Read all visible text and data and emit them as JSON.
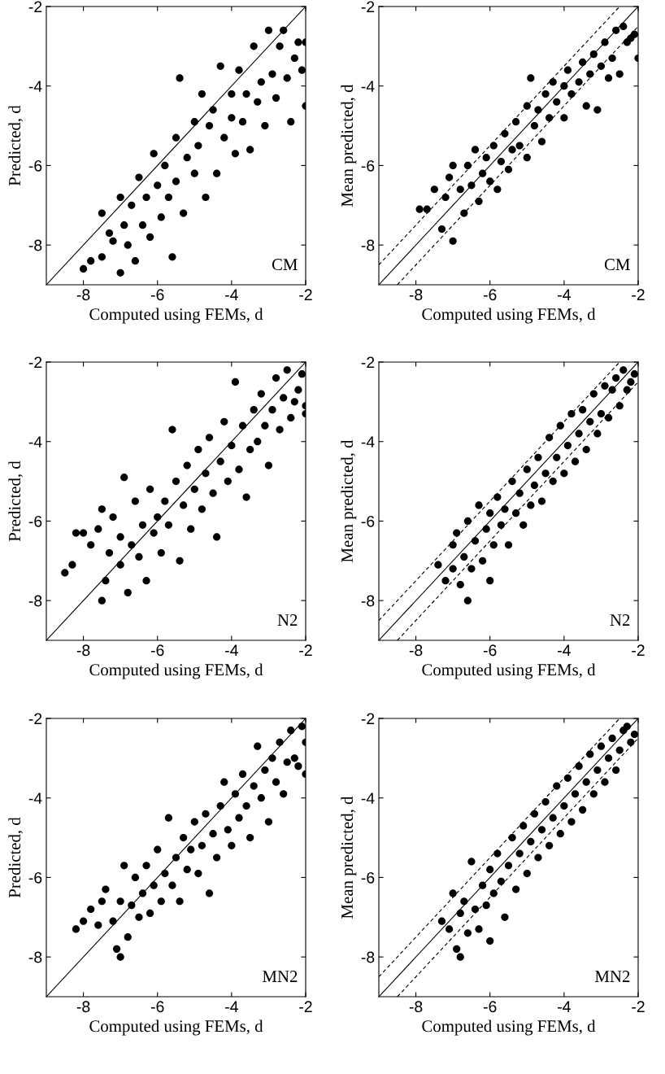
{
  "chart_data": [
    {
      "type": "scatter",
      "xlabel": "Computed using FEMs, d",
      "ylabel": "Predicted, d",
      "annotations": [
        "CM"
      ],
      "xlim": [
        -9,
        -2
      ],
      "ylim": [
        -9,
        -2
      ],
      "xticks": [
        -8,
        -6,
        -4,
        -2
      ],
      "yticks": [
        -8,
        -6,
        -4,
        -2
      ],
      "series": [
        {
          "marker": "circle",
          "color": "#000000",
          "x": [
            -8.0,
            -7.8,
            -7.5,
            -7.5,
            -7.3,
            -7.2,
            -7.0,
            -7.0,
            -6.9,
            -6.8,
            -6.7,
            -6.6,
            -6.5,
            -6.4,
            -6.3,
            -6.2,
            -6.1,
            -6.0,
            -5.9,
            -5.8,
            -5.7,
            -5.6,
            -5.5,
            -5.5,
            -5.4,
            -5.3,
            -5.2,
            -5.0,
            -5.0,
            -4.9,
            -4.8,
            -4.7,
            -4.6,
            -4.5,
            -4.4,
            -4.3,
            -4.2,
            -4.0,
            -4.0,
            -3.9,
            -3.8,
            -3.7,
            -3.6,
            -3.5,
            -3.4,
            -3.3,
            -3.2,
            -3.1,
            -3.0,
            -2.9,
            -2.8,
            -2.7,
            -2.6,
            -2.5,
            -2.4,
            -2.3,
            -2.2,
            -2.1,
            -2.0,
            -2.0
          ],
          "values": [
            -8.6,
            -8.4,
            -7.2,
            -8.3,
            -7.7,
            -7.9,
            -8.7,
            -6.8,
            -7.5,
            -8.0,
            -7.0,
            -8.4,
            -6.3,
            -7.5,
            -6.8,
            -7.8,
            -5.7,
            -6.5,
            -7.3,
            -6.0,
            -6.8,
            -8.3,
            -5.3,
            -6.4,
            -3.8,
            -7.2,
            -5.8,
            -6.2,
            -4.9,
            -5.5,
            -4.2,
            -6.8,
            -5.0,
            -4.6,
            -6.2,
            -3.5,
            -5.3,
            -4.8,
            -4.2,
            -5.7,
            -3.6,
            -4.9,
            -4.2,
            -5.6,
            -3.0,
            -4.4,
            -3.9,
            -5.0,
            -2.6,
            -3.7,
            -4.3,
            -3.0,
            -2.6,
            -3.8,
            -4.9,
            -3.3,
            -2.9,
            -3.6,
            -2.9,
            -4.5
          ]
        },
        {
          "type": "line",
          "marker": "none",
          "color": "#000000",
          "line_style": "solid",
          "x": [
            -9,
            -2
          ],
          "values": [
            -9,
            -2
          ]
        }
      ]
    },
    {
      "type": "scatter",
      "xlabel": "Computed using FEMs, d",
      "ylabel": "Mean predicted, d",
      "annotations": [
        "CM"
      ],
      "xlim": [
        -9,
        -2
      ],
      "ylim": [
        -9,
        -2
      ],
      "xticks": [
        -8,
        -6,
        -4,
        -2
      ],
      "yticks": [
        -8,
        -6,
        -4,
        -2
      ],
      "series": [
        {
          "marker": "circle",
          "color": "#000000",
          "x": [
            -7.9,
            -7.7,
            -7.5,
            -7.3,
            -7.2,
            -7.1,
            -7.0,
            -7.0,
            -6.8,
            -6.7,
            -6.6,
            -6.5,
            -6.4,
            -6.3,
            -6.2,
            -6.1,
            -6.0,
            -5.9,
            -5.8,
            -5.7,
            -5.6,
            -5.5,
            -5.4,
            -5.3,
            -5.2,
            -5.0,
            -5.0,
            -4.9,
            -4.8,
            -4.7,
            -4.6,
            -4.5,
            -4.4,
            -4.3,
            -4.2,
            -4.0,
            -4.0,
            -3.9,
            -3.8,
            -3.6,
            -3.5,
            -3.4,
            -3.3,
            -3.2,
            -3.1,
            -3.0,
            -2.9,
            -2.8,
            -2.7,
            -2.6,
            -2.5,
            -2.4,
            -2.3,
            -2.2,
            -2.1,
            -2.0
          ],
          "values": [
            -7.1,
            -7.1,
            -6.6,
            -7.6,
            -6.8,
            -6.3,
            -7.9,
            -6.0,
            -6.6,
            -7.2,
            -6.0,
            -6.5,
            -5.6,
            -6.9,
            -6.2,
            -5.8,
            -6.4,
            -5.5,
            -6.6,
            -5.9,
            -5.2,
            -6.1,
            -5.6,
            -4.9,
            -5.5,
            -4.5,
            -5.8,
            -3.8,
            -5.0,
            -4.6,
            -5.4,
            -4.2,
            -4.8,
            -3.9,
            -4.4,
            -4.0,
            -4.8,
            -3.6,
            -4.2,
            -3.9,
            -3.4,
            -4.5,
            -3.7,
            -3.2,
            -4.6,
            -3.5,
            -2.9,
            -3.8,
            -3.3,
            -2.6,
            -3.7,
            -2.5,
            -2.9,
            -2.8,
            -2.7,
            -3.3
          ]
        },
        {
          "type": "line",
          "marker": "none",
          "color": "#000000",
          "line_style": "solid",
          "x": [
            -9,
            -2
          ],
          "values": [
            -9,
            -2
          ]
        },
        {
          "type": "line",
          "marker": "none",
          "color": "#000000",
          "line_style": "dashed",
          "x": [
            -9,
            -2.5
          ],
          "values": [
            -8.5,
            -2
          ]
        },
        {
          "type": "line",
          "marker": "none",
          "color": "#000000",
          "line_style": "dashed",
          "x": [
            -8.5,
            -2
          ],
          "values": [
            -9,
            -2.5
          ]
        }
      ]
    },
    {
      "type": "scatter",
      "xlabel": "Computed using FEMs, d",
      "ylabel": "Predicted, d",
      "annotations": [
        "N2"
      ],
      "xlim": [
        -9,
        -2
      ],
      "ylim": [
        -9,
        -2
      ],
      "xticks": [
        -8,
        -6,
        -4,
        -2
      ],
      "yticks": [
        -8,
        -6,
        -4,
        -2
      ],
      "series": [
        {
          "marker": "circle",
          "color": "#000000",
          "x": [
            -8.5,
            -8.3,
            -8.2,
            -8.0,
            -7.8,
            -7.6,
            -7.5,
            -7.5,
            -7.4,
            -7.3,
            -7.2,
            -7.0,
            -7.0,
            -6.9,
            -6.8,
            -6.7,
            -6.6,
            -6.5,
            -6.4,
            -6.3,
            -6.2,
            -6.1,
            -6.0,
            -5.9,
            -5.8,
            -5.7,
            -5.6,
            -5.5,
            -5.4,
            -5.3,
            -5.2,
            -5.1,
            -5.0,
            -4.9,
            -4.8,
            -4.7,
            -4.6,
            -4.5,
            -4.4,
            -4.3,
            -4.2,
            -4.1,
            -4.0,
            -3.9,
            -3.8,
            -3.7,
            -3.6,
            -3.5,
            -3.4,
            -3.3,
            -3.2,
            -3.1,
            -3.0,
            -2.9,
            -2.8,
            -2.7,
            -2.6,
            -2.5,
            -2.4,
            -2.3,
            -2.2,
            -2.1,
            -2.0,
            -2.0
          ],
          "values": [
            -7.3,
            -7.1,
            -6.3,
            -6.3,
            -6.6,
            -6.2,
            -8.0,
            -5.7,
            -7.5,
            -6.8,
            -5.9,
            -7.1,
            -6.4,
            -4.9,
            -7.8,
            -6.6,
            -5.5,
            -6.9,
            -6.1,
            -7.5,
            -5.2,
            -6.3,
            -5.9,
            -6.8,
            -5.5,
            -6.1,
            -3.7,
            -5.0,
            -7.0,
            -5.6,
            -4.6,
            -6.2,
            -5.2,
            -4.2,
            -5.7,
            -4.8,
            -3.9,
            -5.3,
            -6.4,
            -4.5,
            -3.5,
            -5.0,
            -4.1,
            -2.5,
            -4.7,
            -3.6,
            -5.4,
            -4.2,
            -3.2,
            -4.0,
            -2.8,
            -3.6,
            -4.6,
            -3.2,
            -2.4,
            -3.7,
            -2.9,
            -2.2,
            -3.4,
            -3.0,
            -2.7,
            -2.3,
            -3.1,
            -3.3
          ]
        },
        {
          "type": "line",
          "marker": "none",
          "color": "#000000",
          "line_style": "solid",
          "x": [
            -9,
            -2
          ],
          "values": [
            -9,
            -2
          ]
        }
      ]
    },
    {
      "type": "scatter",
      "xlabel": "Computed using FEMs, d",
      "ylabel": "Mean predicted, d",
      "annotations": [
        "N2"
      ],
      "xlim": [
        -9,
        -2
      ],
      "ylim": [
        -9,
        -2
      ],
      "xticks": [
        -8,
        -6,
        -4,
        -2
      ],
      "yticks": [
        -8,
        -6,
        -4,
        -2
      ],
      "series": [
        {
          "marker": "circle",
          "color": "#000000",
          "x": [
            -7.4,
            -7.2,
            -7.0,
            -7.0,
            -6.9,
            -6.8,
            -6.7,
            -6.6,
            -6.6,
            -6.5,
            -6.4,
            -6.3,
            -6.2,
            -6.1,
            -6.0,
            -6.0,
            -5.9,
            -5.8,
            -5.7,
            -5.6,
            -5.5,
            -5.4,
            -5.3,
            -5.2,
            -5.1,
            -5.0,
            -4.9,
            -4.8,
            -4.7,
            -4.6,
            -4.5,
            -4.4,
            -4.3,
            -4.2,
            -4.1,
            -4.0,
            -3.9,
            -3.8,
            -3.7,
            -3.6,
            -3.5,
            -3.4,
            -3.3,
            -3.2,
            -3.1,
            -3.0,
            -2.9,
            -2.8,
            -2.7,
            -2.6,
            -2.5,
            -2.4,
            -2.3,
            -2.2,
            -2.1
          ],
          "values": [
            -7.1,
            -7.5,
            -6.6,
            -7.2,
            -6.3,
            -7.6,
            -6.9,
            -6.0,
            -8.0,
            -7.2,
            -6.5,
            -5.6,
            -7.0,
            -6.2,
            -5.8,
            -7.5,
            -6.6,
            -5.4,
            -6.1,
            -5.7,
            -6.6,
            -5.0,
            -5.8,
            -5.3,
            -6.1,
            -4.7,
            -5.6,
            -5.1,
            -4.4,
            -5.5,
            -4.8,
            -3.9,
            -5.0,
            -4.4,
            -3.6,
            -4.8,
            -4.1,
            -3.3,
            -4.5,
            -3.8,
            -3.2,
            -4.2,
            -3.5,
            -2.8,
            -3.8,
            -3.3,
            -2.6,
            -3.4,
            -2.7,
            -2.4,
            -3.1,
            -2.2,
            -2.7,
            -2.5,
            -2.3
          ]
        },
        {
          "type": "line",
          "marker": "none",
          "color": "#000000",
          "line_style": "solid",
          "x": [
            -9,
            -2
          ],
          "values": [
            -9,
            -2
          ]
        },
        {
          "type": "line",
          "marker": "none",
          "color": "#000000",
          "line_style": "dashed",
          "x": [
            -9,
            -2.5
          ],
          "values": [
            -8.5,
            -2
          ]
        },
        {
          "type": "line",
          "marker": "none",
          "color": "#000000",
          "line_style": "dashed",
          "x": [
            -8.5,
            -2
          ],
          "values": [
            -9,
            -2.5
          ]
        }
      ]
    },
    {
      "type": "scatter",
      "xlabel": "Computed using FEMs, d",
      "ylabel": "Predicted, d",
      "annotations": [
        "MN2"
      ],
      "xlim": [
        -9,
        -2
      ],
      "ylim": [
        -9,
        -2
      ],
      "xticks": [
        -8,
        -6,
        -4,
        -2
      ],
      "yticks": [
        -8,
        -6,
        -4,
        -2
      ],
      "series": [
        {
          "marker": "circle",
          "color": "#000000",
          "x": [
            -8.2,
            -8.0,
            -7.8,
            -7.6,
            -7.5,
            -7.4,
            -7.2,
            -7.1,
            -7.0,
            -7.0,
            -6.9,
            -6.8,
            -6.7,
            -6.6,
            -6.5,
            -6.4,
            -6.3,
            -6.2,
            -6.1,
            -6.0,
            -5.9,
            -5.8,
            -5.7,
            -5.6,
            -5.5,
            -5.4,
            -5.3,
            -5.2,
            -5.1,
            -5.0,
            -4.9,
            -4.8,
            -4.7,
            -4.6,
            -4.5,
            -4.4,
            -4.3,
            -4.2,
            -4.1,
            -4.0,
            -3.9,
            -3.8,
            -3.7,
            -3.6,
            -3.5,
            -3.4,
            -3.3,
            -3.2,
            -3.1,
            -3.0,
            -2.9,
            -2.8,
            -2.7,
            -2.6,
            -2.5,
            -2.4,
            -2.3,
            -2.2,
            -2.1,
            -2.0,
            -2.0
          ],
          "values": [
            -7.3,
            -7.1,
            -6.8,
            -7.2,
            -6.6,
            -6.3,
            -7.1,
            -7.8,
            -8.0,
            -6.6,
            -5.7,
            -7.5,
            -6.7,
            -6.0,
            -7.0,
            -6.4,
            -5.7,
            -6.9,
            -6.2,
            -5.3,
            -6.6,
            -5.9,
            -4.5,
            -6.2,
            -5.5,
            -6.6,
            -5.0,
            -5.8,
            -5.3,
            -4.6,
            -5.9,
            -5.2,
            -4.4,
            -6.4,
            -4.9,
            -5.5,
            -4.2,
            -3.6,
            -4.8,
            -5.2,
            -3.9,
            -4.5,
            -3.4,
            -4.2,
            -5.0,
            -3.7,
            -2.7,
            -4.0,
            -3.3,
            -4.6,
            -3.0,
            -3.6,
            -2.6,
            -3.9,
            -3.1,
            -2.3,
            -3.0,
            -3.2,
            -2.2,
            -2.6,
            -3.4
          ]
        },
        {
          "type": "line",
          "marker": "none",
          "color": "#000000",
          "line_style": "solid",
          "x": [
            -9,
            -2
          ],
          "values": [
            -9,
            -2
          ]
        }
      ]
    },
    {
      "type": "scatter",
      "xlabel": "Computed using FEMs, d",
      "ylabel": "Mean predicted, d",
      "annotations": [
        "MN2"
      ],
      "xlim": [
        -9,
        -2
      ],
      "ylim": [
        -9,
        -2
      ],
      "xticks": [
        -8,
        -6,
        -4,
        -2
      ],
      "yticks": [
        -8,
        -6,
        -4,
        -2
      ],
      "series": [
        {
          "marker": "circle",
          "color": "#000000",
          "x": [
            -7.3,
            -7.1,
            -7.0,
            -6.9,
            -6.8,
            -6.8,
            -6.7,
            -6.6,
            -6.5,
            -6.4,
            -6.3,
            -6.2,
            -6.1,
            -6.0,
            -6.0,
            -5.9,
            -5.8,
            -5.7,
            -5.6,
            -5.5,
            -5.4,
            -5.3,
            -5.2,
            -5.1,
            -5.0,
            -4.9,
            -4.8,
            -4.7,
            -4.6,
            -4.5,
            -4.4,
            -4.3,
            -4.2,
            -4.1,
            -4.0,
            -3.9,
            -3.8,
            -3.7,
            -3.6,
            -3.5,
            -3.4,
            -3.3,
            -3.2,
            -3.1,
            -3.0,
            -2.9,
            -2.8,
            -2.7,
            -2.6,
            -2.5,
            -2.4,
            -2.3,
            -2.2,
            -2.1
          ],
          "values": [
            -7.1,
            -7.3,
            -6.4,
            -7.8,
            -6.9,
            -8.0,
            -6.6,
            -7.4,
            -5.6,
            -6.8,
            -7.3,
            -6.2,
            -6.7,
            -5.8,
            -7.6,
            -6.4,
            -5.4,
            -6.1,
            -7.0,
            -5.7,
            -5.0,
            -6.3,
            -5.4,
            -4.7,
            -5.9,
            -5.1,
            -4.4,
            -5.5,
            -4.8,
            -4.1,
            -5.2,
            -4.5,
            -3.7,
            -4.9,
            -4.2,
            -3.5,
            -4.6,
            -3.9,
            -3.2,
            -4.3,
            -3.6,
            -2.9,
            -3.9,
            -3.3,
            -2.7,
            -3.6,
            -3.0,
            -2.5,
            -3.3,
            -2.8,
            -2.3,
            -2.2,
            -2.6,
            -2.4
          ]
        },
        {
          "type": "line",
          "marker": "none",
          "color": "#000000",
          "line_style": "solid",
          "x": [
            -9,
            -2
          ],
          "values": [
            -9,
            -2
          ]
        },
        {
          "type": "line",
          "marker": "none",
          "color": "#000000",
          "line_style": "dashed",
          "x": [
            -9,
            -2.5
          ],
          "values": [
            -8.5,
            -2
          ]
        },
        {
          "type": "line",
          "marker": "none",
          "color": "#000000",
          "line_style": "dashed",
          "x": [
            -8.5,
            -2
          ],
          "values": [
            -9,
            -2.5
          ]
        }
      ]
    }
  ]
}
